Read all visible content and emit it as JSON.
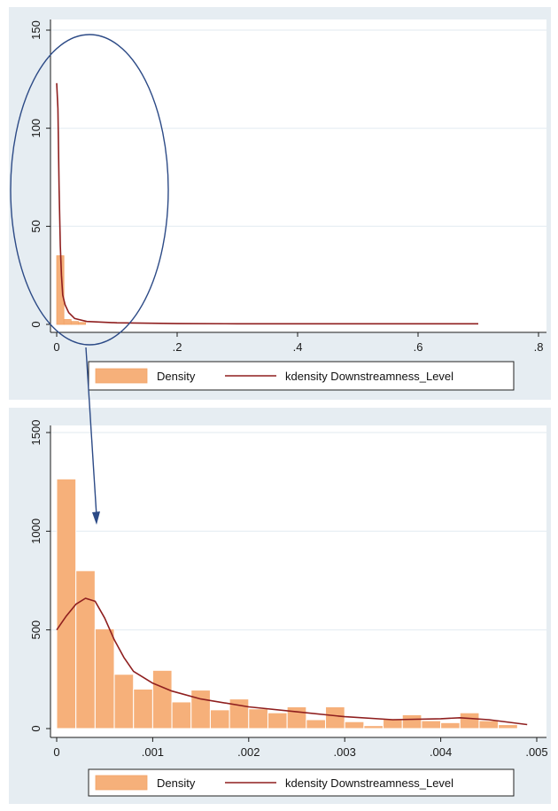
{
  "colors": {
    "panel_background": "#e6edf2",
    "plot_background": "#ffffff",
    "bar_fill": "#f6b07a",
    "bar_stroke": "#f3a468",
    "kdensity_line": "#8f1f1f",
    "grid": "#e6edf2",
    "annotation": "#2c4a86"
  },
  "annotation": {
    "shape": "ellipse",
    "note": "blue ellipse around the spike near x = 0 in the top chart, with an arrow pointing down into the bottom chart"
  },
  "chart_data": [
    {
      "type": "bar",
      "title": "",
      "xlabel": "",
      "ylabel": "",
      "xlim": [
        0,
        0.8
      ],
      "ylim": [
        0,
        150
      ],
      "x_ticks": [
        "0",
        ".2",
        ".4",
        ".6",
        ".8"
      ],
      "y_ticks": [
        "0",
        "50",
        "100",
        "150"
      ],
      "x_tick_values": [
        0,
        0.2,
        0.4,
        0.6,
        0.8
      ],
      "y_tick_values": [
        0,
        50,
        100,
        150
      ],
      "grid": true,
      "legend_position": "bottom",
      "legend": [
        "Density",
        "kdensity Downstreamness_Level"
      ],
      "series": [
        {
          "name": "Density",
          "kind": "histogram",
          "bins": [
            {
              "x0": 0.0,
              "x1": 0.012,
              "value": 35
            },
            {
              "x0": 0.012,
              "x1": 0.024,
              "value": 2.5
            },
            {
              "x0": 0.024,
              "x1": 0.036,
              "value": 1.5
            },
            {
              "x0": 0.036,
              "x1": 0.048,
              "value": 1
            }
          ]
        },
        {
          "name": "kdensity Downstreamness_Level",
          "kind": "line",
          "x": [
            0.0,
            0.002,
            0.004,
            0.006,
            0.008,
            0.01,
            0.014,
            0.02,
            0.03,
            0.05,
            0.1,
            0.2,
            0.3,
            0.4,
            0.5,
            0.6,
            0.7
          ],
          "y": [
            123,
            110,
            70,
            40,
            25,
            15,
            10,
            6,
            3,
            1.5,
            0.8,
            0.4,
            0.3,
            0.3,
            0.3,
            0.3,
            0.3
          ]
        }
      ]
    },
    {
      "type": "bar",
      "title": "",
      "xlabel": "",
      "ylabel": "",
      "xlim": [
        0,
        0.005
      ],
      "ylim": [
        0,
        1500
      ],
      "x_ticks": [
        "0",
        ".001",
        ".002",
        ".003",
        ".004",
        ".005"
      ],
      "y_ticks": [
        "0",
        "500",
        "1000",
        "1500"
      ],
      "x_tick_values": [
        0,
        0.001,
        0.002,
        0.003,
        0.004,
        0.005
      ],
      "y_tick_values": [
        0,
        500,
        1000,
        1500
      ],
      "grid": true,
      "legend_position": "bottom",
      "legend": [
        "Density",
        "kdensity Downstreamness_Level"
      ],
      "series": [
        {
          "name": "Density",
          "kind": "histogram",
          "bin_width": 0.0002,
          "bin_start": 0.0,
          "values": [
            1265,
            800,
            505,
            275,
            200,
            295,
            135,
            195,
            95,
            150,
            100,
            80,
            110,
            45,
            110,
            35,
            15,
            50,
            70,
            40,
            30,
            80,
            40,
            20
          ]
        },
        {
          "name": "kdensity Downstreamness_Level",
          "kind": "line",
          "x": [
            0.0,
            0.0001,
            0.0002,
            0.0003,
            0.0004,
            0.0005,
            0.0006,
            0.0007,
            0.0008,
            0.001,
            0.0012,
            0.0015,
            0.002,
            0.0025,
            0.003,
            0.0035,
            0.004,
            0.0042,
            0.0045,
            0.0049
          ],
          "y": [
            500,
            570,
            630,
            660,
            645,
            560,
            450,
            360,
            290,
            230,
            190,
            150,
            110,
            85,
            60,
            45,
            50,
            55,
            45,
            20
          ]
        }
      ]
    }
  ]
}
